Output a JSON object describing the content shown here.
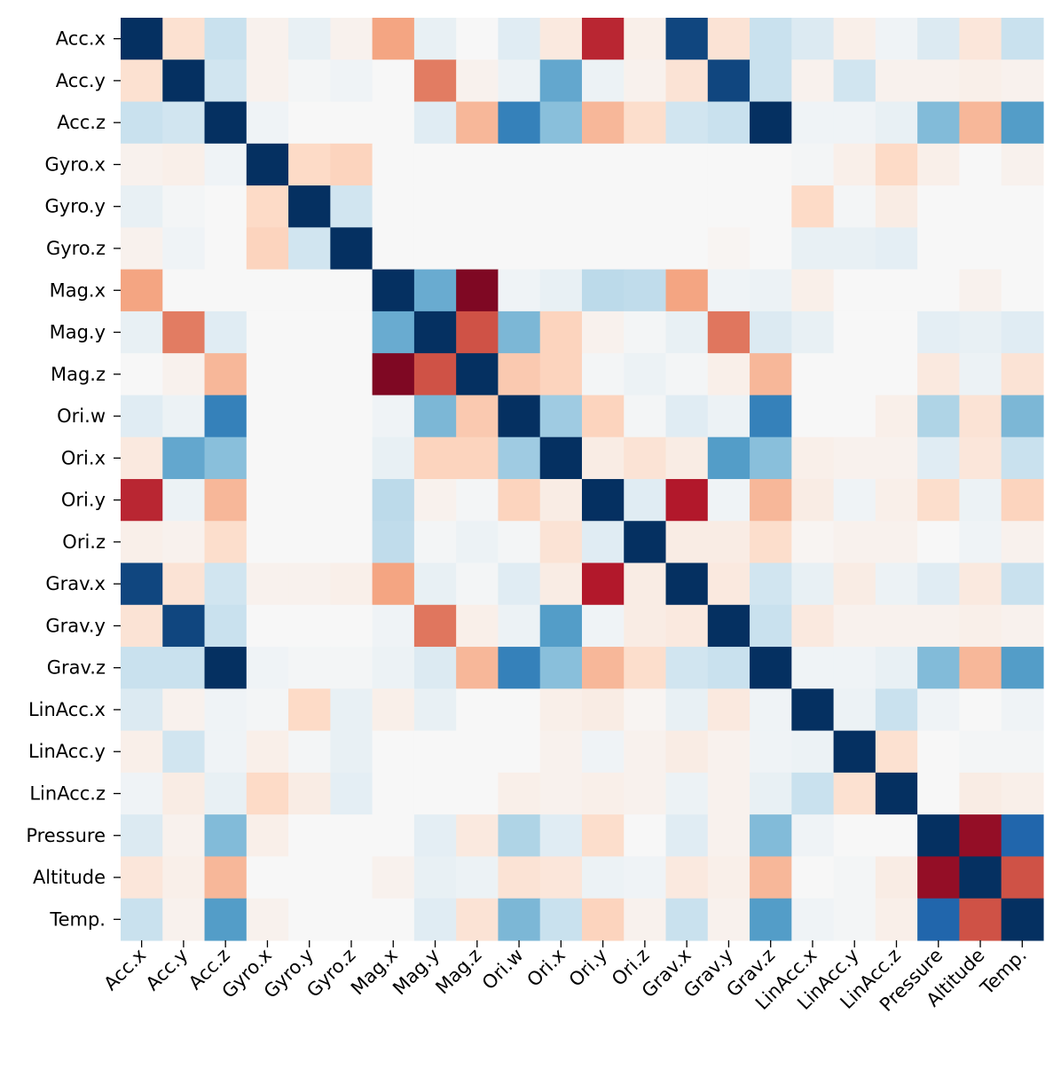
{
  "chart_data": {
    "type": "heatmap",
    "title": "",
    "xlabel": "",
    "ylabel": "",
    "labels": [
      "Acc.x",
      "Acc.y",
      "Acc.z",
      "Gyro.x",
      "Gyro.y",
      "Gyro.z",
      "Mag.x",
      "Mag.y",
      "Mag.z",
      "Ori.w",
      "Ori.x",
      "Ori.y",
      "Ori.z",
      "Grav.x",
      "Grav.y",
      "Grav.z",
      "LinAcc.x",
      "LinAcc.y",
      "LinAcc.z",
      "Pressure",
      "Altitude",
      "Temp."
    ],
    "value_range": [
      -1,
      1
    ],
    "colormap": "RdBu_r",
    "colorbar": false,
    "matrix": [
      [
        1.0,
        -0.08,
        0.12,
        -0.02,
        0.04,
        -0.02,
        -0.25,
        0.04,
        0.0,
        0.06,
        -0.05,
        -0.7,
        -0.03,
        0.9,
        -0.07,
        0.12,
        0.07,
        -0.03,
        0.02,
        0.07,
        -0.06,
        0.12
      ],
      [
        -0.08,
        1.0,
        0.1,
        -0.02,
        0.01,
        0.02,
        0.0,
        -0.4,
        -0.02,
        0.03,
        0.4,
        0.03,
        -0.02,
        -0.07,
        0.9,
        0.12,
        -0.02,
        0.1,
        -0.02,
        -0.02,
        -0.03,
        -0.02
      ],
      [
        0.12,
        0.1,
        1.0,
        0.02,
        0.0,
        0.0,
        0.0,
        0.06,
        -0.2,
        0.6,
        0.28,
        -0.2,
        -0.09,
        0.1,
        0.12,
        1.0,
        0.02,
        0.02,
        0.04,
        0.3,
        -0.2,
        0.45
      ],
      [
        -0.02,
        -0.03,
        0.02,
        1.0,
        -0.1,
        -0.12,
        0.0,
        0.0,
        0.0,
        0.0,
        0.0,
        0.0,
        0.0,
        0.0,
        0.0,
        0.0,
        0.01,
        -0.03,
        -0.1,
        -0.03,
        0.0,
        -0.02
      ],
      [
        0.04,
        0.01,
        0.0,
        -0.1,
        1.0,
        0.1,
        0.0,
        0.0,
        0.0,
        0.0,
        0.0,
        0.0,
        0.0,
        0.0,
        0.0,
        0.0,
        -0.1,
        0.01,
        -0.04,
        0.0,
        0.0,
        0.0
      ],
      [
        -0.02,
        0.02,
        0.0,
        -0.12,
        0.1,
        1.0,
        0.0,
        0.0,
        0.0,
        0.0,
        0.0,
        0.0,
        0.0,
        0.0,
        -0.01,
        0.0,
        0.04,
        0.04,
        0.05,
        0.0,
        0.0,
        0.0
      ],
      [
        -0.25,
        0.0,
        0.0,
        0.0,
        0.0,
        0.0,
        1.0,
        0.38,
        -0.92,
        0.02,
        0.04,
        0.15,
        0.14,
        -0.25,
        0.02,
        0.03,
        -0.03,
        0.0,
        0.0,
        0.0,
        -0.02,
        0.0
      ],
      [
        0.04,
        -0.4,
        0.06,
        0.0,
        0.0,
        0.0,
        0.38,
        1.0,
        -0.55,
        0.32,
        -0.12,
        -0.02,
        0.01,
        0.04,
        -0.42,
        0.07,
        0.04,
        0.0,
        0.0,
        0.05,
        0.04,
        0.06
      ],
      [
        0.0,
        -0.02,
        -0.2,
        0.0,
        0.0,
        0.0,
        -0.92,
        -0.55,
        1.0,
        -0.15,
        -0.12,
        0.01,
        0.03,
        0.01,
        -0.03,
        -0.2,
        0.0,
        0.0,
        0.0,
        -0.05,
        0.03,
        -0.07
      ],
      [
        0.06,
        0.03,
        0.6,
        0.0,
        0.0,
        0.0,
        0.02,
        0.32,
        -0.15,
        1.0,
        0.22,
        -0.12,
        0.01,
        0.06,
        0.03,
        0.6,
        0.0,
        0.0,
        -0.03,
        0.18,
        -0.07,
        0.32
      ],
      [
        -0.05,
        0.4,
        0.28,
        0.0,
        0.0,
        0.0,
        0.04,
        -0.12,
        -0.12,
        0.22,
        1.0,
        -0.04,
        -0.07,
        -0.04,
        0.45,
        0.28,
        -0.03,
        -0.02,
        -0.02,
        0.06,
        -0.06,
        0.12
      ],
      [
        -0.7,
        0.03,
        -0.2,
        0.0,
        0.0,
        0.0,
        0.15,
        -0.02,
        0.01,
        -0.12,
        -0.04,
        1.0,
        0.06,
        -0.75,
        0.02,
        -0.2,
        -0.04,
        0.02,
        -0.03,
        -0.09,
        0.03,
        -0.12
      ],
      [
        -0.03,
        -0.02,
        -0.09,
        0.0,
        0.0,
        0.0,
        0.14,
        0.01,
        0.03,
        0.01,
        -0.07,
        0.06,
        1.0,
        -0.04,
        -0.04,
        -0.09,
        -0.01,
        -0.02,
        -0.02,
        0.0,
        0.02,
        -0.02
      ],
      [
        0.9,
        -0.07,
        0.1,
        -0.02,
        -0.02,
        -0.03,
        -0.25,
        0.04,
        0.01,
        0.06,
        -0.04,
        -0.75,
        -0.04,
        1.0,
        -0.05,
        0.1,
        0.04,
        -0.04,
        0.03,
        0.06,
        -0.05,
        0.12
      ],
      [
        -0.07,
        0.9,
        0.12,
        0.0,
        0.0,
        0.0,
        0.02,
        -0.42,
        -0.03,
        0.03,
        0.45,
        0.02,
        -0.04,
        -0.05,
        1.0,
        0.12,
        -0.05,
        -0.02,
        -0.02,
        -0.02,
        -0.03,
        -0.02
      ],
      [
        0.12,
        0.12,
        1.0,
        0.02,
        0.01,
        0.01,
        0.03,
        0.07,
        -0.2,
        0.6,
        0.28,
        -0.2,
        -0.09,
        0.1,
        0.12,
        1.0,
        0.02,
        0.02,
        0.04,
        0.3,
        -0.2,
        0.45
      ],
      [
        0.07,
        -0.02,
        0.02,
        0.01,
        -0.1,
        0.04,
        -0.03,
        0.04,
        0.0,
        0.0,
        -0.03,
        -0.04,
        -0.01,
        0.04,
        -0.05,
        0.02,
        1.0,
        0.03,
        0.12,
        0.02,
        0.0,
        0.02
      ],
      [
        -0.03,
        0.1,
        0.02,
        -0.03,
        0.01,
        0.04,
        0.0,
        0.0,
        0.0,
        0.0,
        -0.02,
        0.02,
        -0.02,
        -0.04,
        -0.02,
        0.02,
        0.03,
        1.0,
        -0.08,
        0.0,
        0.01,
        0.01
      ],
      [
        0.02,
        -0.04,
        0.04,
        -0.1,
        -0.04,
        0.05,
        0.0,
        0.0,
        0.0,
        -0.03,
        -0.02,
        -0.03,
        -0.02,
        0.03,
        -0.02,
        0.04,
        0.12,
        -0.08,
        1.0,
        0.0,
        -0.04,
        -0.03
      ],
      [
        0.07,
        -0.02,
        0.3,
        -0.03,
        0.0,
        0.0,
        0.0,
        0.05,
        -0.05,
        0.18,
        0.06,
        -0.09,
        0.0,
        0.06,
        -0.02,
        0.3,
        0.02,
        0.0,
        0.0,
        1.0,
        -0.85,
        0.75
      ],
      [
        -0.06,
        -0.03,
        -0.2,
        0.0,
        0.0,
        0.0,
        -0.02,
        0.04,
        0.03,
        -0.07,
        -0.06,
        0.03,
        0.02,
        -0.05,
        -0.03,
        -0.2,
        0.0,
        0.01,
        -0.04,
        -0.85,
        1.0,
        -0.55
      ],
      [
        0.12,
        -0.02,
        0.45,
        -0.02,
        0.0,
        0.0,
        0.0,
        0.06,
        -0.07,
        0.32,
        0.12,
        -0.12,
        -0.02,
        0.12,
        -0.02,
        0.45,
        0.02,
        0.01,
        -0.03,
        0.75,
        -0.55,
        1.0
      ]
    ]
  }
}
